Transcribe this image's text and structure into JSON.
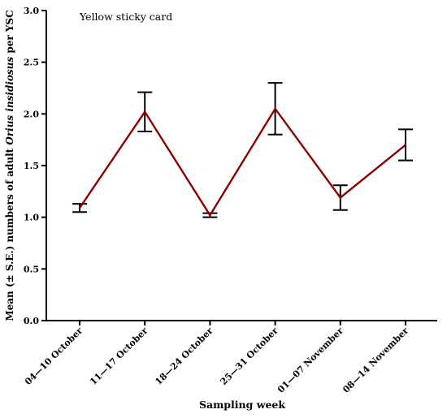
{
  "chart_data": {
    "type": "line",
    "annotation": "Yellow sticky card",
    "xlabel": "Sampling week",
    "ylabel_parts": [
      {
        "text": "Mean (± S.E.) numbers of adult ",
        "italic": false
      },
      {
        "text": "Orius insidiosus",
        "italic": true
      },
      {
        "text": " per YSC",
        "italic": false
      }
    ],
    "categories": [
      "04—10 October",
      "11—17 October",
      "18—24 October",
      "25—31 October",
      "01—07 November",
      "08—14 November"
    ],
    "series": [
      {
        "values": [
          1.09,
          2.02,
          1.02,
          2.05,
          1.19,
          1.7
        ],
        "error_low": [
          1.05,
          1.83,
          1.0,
          1.8,
          1.07,
          1.55
        ],
        "error_high": [
          1.13,
          2.21,
          1.04,
          2.3,
          1.31,
          1.85
        ],
        "color": "#8b0000"
      }
    ],
    "ylim": [
      0.0,
      3.0
    ],
    "yticks": [
      "0.0",
      "0.5",
      "1.0",
      "1.5",
      "2.0",
      "2.5",
      "3.0"
    ],
    "grid": false,
    "legend": "none"
  }
}
